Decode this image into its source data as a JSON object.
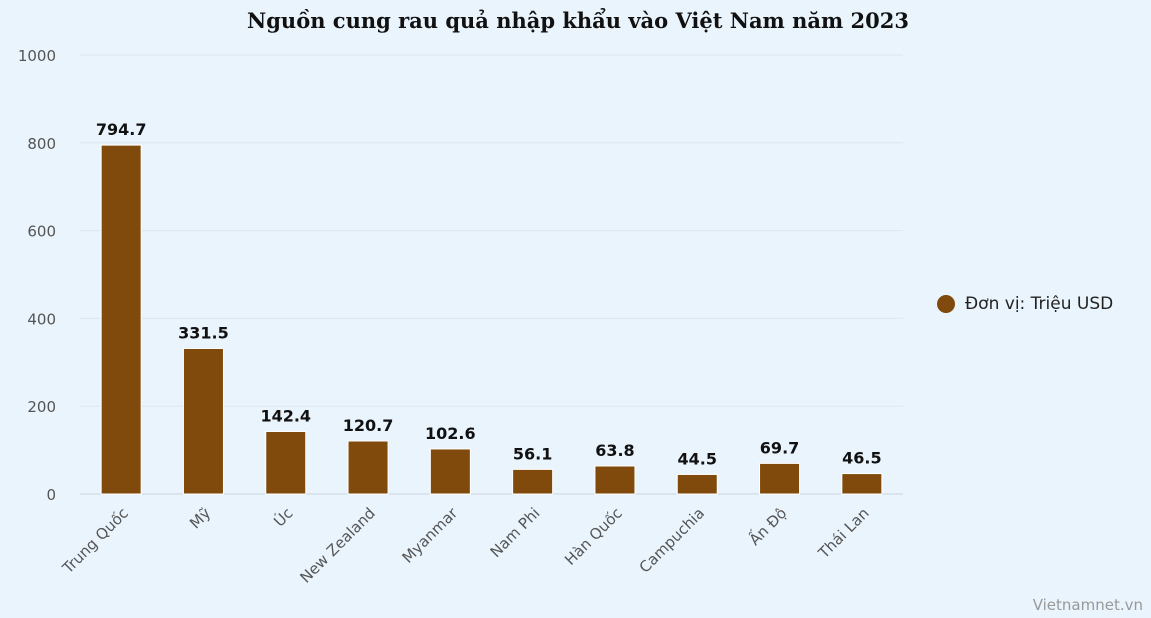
{
  "chart_data": {
    "type": "bar",
    "title": "Nguồn cung rau quả nhập khẩu vào Việt Nam năm 2023",
    "categories": [
      "Trung Quốc",
      "Mỹ",
      "Úc",
      "New Zealand",
      "Myanmar",
      "Nam Phi",
      "Hàn Quốc",
      "Campuchia",
      "Ấn Độ",
      "Thái Lan"
    ],
    "series": [
      {
        "name": "Đơn vị: Triệu USD",
        "values": [
          794.7,
          331.5,
          142.4,
          120.7,
          102.6,
          56.1,
          63.8,
          44.5,
          69.7,
          46.5
        ],
        "labels": [
          "794.7",
          "331.5",
          "142.4",
          "120.7",
          "102.6",
          "56.1",
          "63.8",
          "44.5",
          "69.7",
          "46.5"
        ]
      }
    ],
    "ylim": [
      0,
      1000
    ],
    "yticks": [
      "0",
      "200",
      "400",
      "600",
      "800",
      "1000"
    ],
    "xlabel": "",
    "ylabel": "",
    "grid": true,
    "legend_position": "right",
    "bar_color": "#7f4a0c"
  },
  "credit": "Vietnamnet.vn"
}
